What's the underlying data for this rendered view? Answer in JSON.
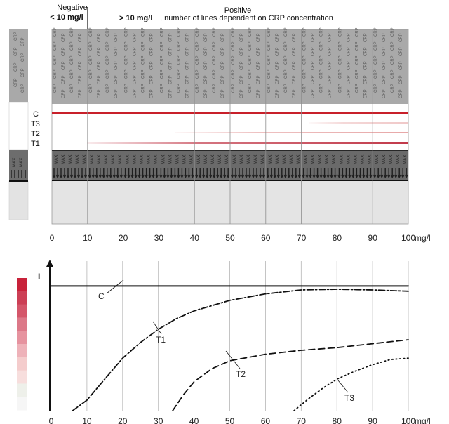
{
  "header": {
    "negative_title": "Negative",
    "negative_range": "< 10 mg/l",
    "positive_title": "Positive",
    "positive_range": "> 10 mg/l",
    "positive_note": ", number of lines dependent on CRP concentration"
  },
  "strip": {
    "conjugate_text": "CRP",
    "absorbent_text": "MAX",
    "line_labels": [
      "C",
      "T3",
      "T2",
      "T1"
    ],
    "line_colors": {
      "C": "#c8202a",
      "T1": "#c23a4a",
      "T2": "#e7a7a7",
      "T3": "#f0c8c8"
    }
  },
  "axis": {
    "ticks": [
      0,
      10,
      20,
      30,
      40,
      50,
      60,
      70,
      80,
      90,
      100
    ],
    "unit": "mg/l"
  },
  "chart": {
    "y_label": "I",
    "color_scale": [
      "#c8223a",
      "#cc3f55",
      "#d4566a",
      "#dc7888",
      "#e6939f",
      "#eeb2b9",
      "#f4cccc",
      "#f7dedd",
      "#eef0ea",
      "#f6f6f6"
    ]
  },
  "chart_data": {
    "type": "line",
    "title": "",
    "xlabel": "mg/l",
    "ylabel": "I",
    "xlim": [
      0,
      100
    ],
    "ylim": [
      0,
      1
    ],
    "grid": true,
    "series": [
      {
        "name": "C",
        "style": "solid",
        "x": [
          0,
          100
        ],
        "y": [
          0.95,
          0.95
        ]
      },
      {
        "name": "T1",
        "style": "dash-dot",
        "x": [
          6,
          10,
          15,
          20,
          25,
          30,
          35,
          40,
          50,
          60,
          70,
          80,
          90,
          100
        ],
        "y": [
          0.0,
          0.08,
          0.24,
          0.4,
          0.52,
          0.62,
          0.7,
          0.76,
          0.84,
          0.89,
          0.92,
          0.925,
          0.92,
          0.91
        ]
      },
      {
        "name": "T2",
        "style": "dashed",
        "x": [
          34,
          37,
          40,
          45,
          50,
          60,
          70,
          80,
          90,
          100
        ],
        "y": [
          0.0,
          0.12,
          0.22,
          0.32,
          0.38,
          0.43,
          0.46,
          0.48,
          0.51,
          0.54
        ]
      },
      {
        "name": "T3",
        "style": "dotted",
        "x": [
          68,
          72,
          76,
          80,
          85,
          90,
          95,
          100
        ],
        "y": [
          0.0,
          0.09,
          0.17,
          0.24,
          0.3,
          0.35,
          0.39,
          0.4
        ]
      }
    ],
    "annotations": [
      "C",
      "T1",
      "T2",
      "T3"
    ]
  }
}
